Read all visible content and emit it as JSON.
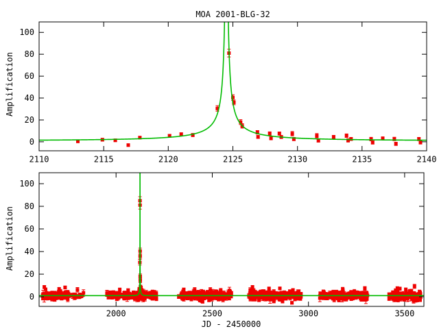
{
  "title": "MOA 2001-BLG-32",
  "colors": {
    "data_points": "#ee0000",
    "model_curve": "#00bb00",
    "axis": "#000000",
    "text": "#000000",
    "background": "#ffffff"
  },
  "chart_data": [
    {
      "type": "scatter",
      "panel": "top-zoom-on-event",
      "title": "MOA 2001-BLG-32",
      "xlabel": "",
      "ylabel": "Amplification",
      "xlim": [
        2110,
        2140
      ],
      "ylim": [
        -8.2,
        109.5
      ],
      "xticks": [
        2110,
        2115,
        2120,
        2125,
        2130,
        2135,
        2140
      ],
      "yticks": [
        0,
        20,
        40,
        60,
        80,
        100
      ],
      "grid": false,
      "legend": "none",
      "model": {
        "kind": "point-lens-microlensing",
        "formula": "A(u)=(u^2+2)/(u*sqrt(u^2+4)), u(t)=sqrt(u0^2+((t-t0)/tE)^2)",
        "t0": 2124.5,
        "tE": 18,
        "u0": 0.004,
        "baseline_amplification": 1
      },
      "points_format": [
        "jd_minus_2450000",
        "amplification",
        "error"
      ],
      "points": [
        [
          2113.0,
          0.5,
          1.3
        ],
        [
          2114.9,
          1.9,
          1.3
        ],
        [
          2115.9,
          1.4,
          1.2
        ],
        [
          2116.9,
          -3.0,
          1.2
        ],
        [
          2117.8,
          3.8,
          1.2
        ],
        [
          2120.1,
          5.5,
          1.3
        ],
        [
          2121.0,
          7.0,
          1.2
        ],
        [
          2121.9,
          6.2,
          1.5
        ],
        [
          2123.8,
          30.5,
          2.5
        ],
        [
          2124.7,
          81.0,
          3.5
        ],
        [
          2125.0,
          40.5,
          2.5
        ],
        [
          2125.08,
          36.0,
          2.2
        ],
        [
          2125.6,
          18.0,
          2.2
        ],
        [
          2125.72,
          14.5,
          2.0
        ],
        [
          2126.9,
          8.7,
          1.6
        ],
        [
          2126.95,
          4.5,
          1.4
        ],
        [
          2127.85,
          7.5,
          1.6
        ],
        [
          2127.95,
          3.2,
          1.4
        ],
        [
          2128.6,
          7.5,
          1.5
        ],
        [
          2128.75,
          4.4,
          1.4
        ],
        [
          2129.6,
          7.4,
          2.0
        ],
        [
          2129.72,
          2.5,
          1.5
        ],
        [
          2131.5,
          5.6,
          1.9
        ],
        [
          2131.62,
          1.2,
          1.5
        ],
        [
          2132.8,
          4.4,
          1.5
        ],
        [
          2133.8,
          5.6,
          1.6
        ],
        [
          2133.92,
          1.3,
          1.5
        ],
        [
          2134.15,
          2.6,
          1.4
        ],
        [
          2135.7,
          2.5,
          1.6
        ],
        [
          2135.82,
          -0.6,
          1.5
        ],
        [
          2136.6,
          3.1,
          1.5
        ],
        [
          2137.5,
          2.6,
          1.6
        ],
        [
          2137.62,
          -1.9,
          1.5
        ],
        [
          2139.4,
          2.5,
          1.5
        ],
        [
          2139.52,
          -0.5,
          1.5
        ]
      ]
    },
    {
      "type": "scatter",
      "panel": "bottom-full-baseline",
      "xlabel": "JD - 2450000",
      "ylabel": "Amplification",
      "xlim": [
        1600,
        3600
      ],
      "ylim": [
        -8.5,
        109.7
      ],
      "xticks": [
        2000,
        2500,
        3000,
        3500
      ],
      "yticks": [
        0,
        20,
        40,
        60,
        80,
        100
      ],
      "grid": false,
      "legend": "none",
      "model": {
        "kind": "point-lens-microlensing",
        "formula": "A(u)=(u^2+2)/(u*sqrt(u^2+4)), u(t)=sqrt(u0^2+((t-t0)/tE)^2)",
        "t0": 2124.5,
        "tE": 18,
        "u0": 0.004,
        "baseline_amplification": 1
      },
      "overlay_points_from_panel": 0,
      "points_format": [
        "jd_minus_2450000",
        "amplification",
        "error"
      ],
      "extra_points": [
        [
          2124.3,
          85.0,
          3.5
        ],
        [
          1627,
          8.6,
          1.4
        ],
        [
          1634,
          6.6,
          1.2
        ],
        [
          1704,
          6.9,
          1.3
        ],
        [
          2352,
          6.4,
          1.3
        ],
        [
          2709,
          8.2,
          1.8
        ],
        [
          3178,
          6.8,
          1.5
        ],
        [
          3462,
          7.3,
          1.6
        ],
        [
          3506,
          6.4,
          1.4
        ],
        [
          2450,
          -4.2,
          1.5
        ],
        [
          2820,
          -4.0,
          1.4
        ]
      ],
      "baseline_clusters_format": [
        "jd_start",
        "jd_end",
        "n_points",
        "scatter_sigma"
      ],
      "baseline_clusters": [
        [
          1618,
          1755,
          115,
          1.6
        ],
        [
          1770,
          1832,
          20,
          0.9
        ],
        [
          1952,
          2118,
          115,
          1.5
        ],
        [
          2128,
          2210,
          62,
          1.5
        ],
        [
          2325,
          2600,
          235,
          1.6
        ],
        [
          2688,
          2962,
          245,
          1.6
        ],
        [
          3058,
          3312,
          215,
          1.6
        ],
        [
          3418,
          3585,
          145,
          1.7
        ]
      ],
      "mean_baseline_amplification": 1,
      "noise_seed": 1234
    }
  ]
}
